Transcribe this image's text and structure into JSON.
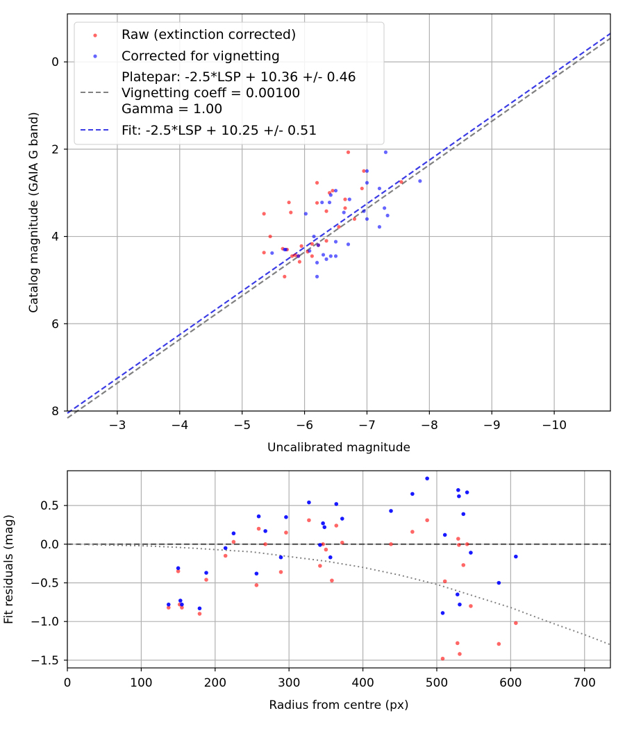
{
  "chart_data": [
    {
      "type": "scatter",
      "xlabel": "Uncalibrated magnitude",
      "ylabel": "Catalog magnitude (GAIA G band)",
      "xlim": [
        -2.2,
        -10.9
      ],
      "ylim": [
        8.0,
        -1.1
      ],
      "xticks": [
        -3,
        -4,
        -5,
        -6,
        -7,
        -8,
        -9,
        -10
      ],
      "xtick_labels": [
        "−3",
        "−4",
        "−5",
        "−6",
        "−7",
        "−8",
        "−9",
        "−10"
      ],
      "yticks": [
        0,
        2,
        4,
        6,
        8
      ],
      "ytick_labels": [
        "0",
        "2",
        "4",
        "6",
        "8"
      ],
      "grid": true,
      "legend_position": "top-left",
      "series": [
        {
          "name": "Raw (extinction corrected)",
          "kind": "scatter",
          "color": "#ff0000",
          "points": [
            [
              -6.7,
              2.07
            ],
            [
              -6.95,
              2.5
            ],
            [
              -7.55,
              2.75
            ],
            [
              -6.2,
              2.77
            ],
            [
              -6.4,
              3.0
            ],
            [
              -6.45,
              2.95
            ],
            [
              -6.65,
              3.15
            ],
            [
              -6.92,
              2.9
            ],
            [
              -5.75,
              3.22
            ],
            [
              -6.2,
              3.23
            ],
            [
              -5.35,
              3.48
            ],
            [
              -5.78,
              3.45
            ],
            [
              -6.35,
              3.42
            ],
            [
              -6.65,
              3.35
            ],
            [
              -6.8,
              3.6
            ],
            [
              -6.55,
              3.78
            ],
            [
              -5.45,
              4.0
            ],
            [
              -6.35,
              4.1
            ],
            [
              -6.22,
              4.2
            ],
            [
              -6.12,
              4.17
            ],
            [
              -5.65,
              4.28
            ],
            [
              -5.72,
              4.3
            ],
            [
              -5.95,
              4.22
            ],
            [
              -6.05,
              4.35
            ],
            [
              -5.85,
              4.43
            ],
            [
              -5.8,
              4.45
            ],
            [
              -5.9,
              4.45
            ],
            [
              -6.12,
              4.45
            ],
            [
              -5.35,
              4.37
            ],
            [
              -5.92,
              4.58
            ],
            [
              -5.68,
              4.92
            ]
          ]
        },
        {
          "name": "Corrected for vignetting",
          "kind": "scatter",
          "color": "#0000ff",
          "points": [
            [
              -7.3,
              2.07
            ],
            [
              -7.0,
              2.5
            ],
            [
              -7.0,
              2.77
            ],
            [
              -7.85,
              2.73
            ],
            [
              -6.5,
              2.95
            ],
            [
              -7.2,
              2.9
            ],
            [
              -6.42,
              3.05
            ],
            [
              -6.28,
              3.22
            ],
            [
              -6.4,
              3.22
            ],
            [
              -6.72,
              3.15
            ],
            [
              -6.95,
              3.42
            ],
            [
              -7.28,
              3.35
            ],
            [
              -6.02,
              3.48
            ],
            [
              -6.63,
              3.45
            ],
            [
              -7.0,
              3.6
            ],
            [
              -7.33,
              3.52
            ],
            [
              -7.2,
              3.78
            ],
            [
              -6.15,
              4.0
            ],
            [
              -6.5,
              4.12
            ],
            [
              -6.7,
              4.18
            ],
            [
              -6.22,
              4.2
            ],
            [
              -5.68,
              4.3
            ],
            [
              -5.7,
              4.3
            ],
            [
              -6.08,
              4.33
            ],
            [
              -5.48,
              4.38
            ],
            [
              -5.9,
              4.45
            ],
            [
              -6.3,
              4.42
            ],
            [
              -6.5,
              4.45
            ],
            [
              -6.2,
              4.6
            ],
            [
              -6.35,
              4.52
            ],
            [
              -6.2,
              4.92
            ],
            [
              -6.42,
              4.45
            ]
          ]
        },
        {
          "name": "Platepar: -2.5*LSP + 10.36 +/- 0.46\nVignetting coeff = 0.00100\nGamma = 1.00",
          "kind": "line",
          "style": "dashed",
          "color": "#808080",
          "slope": -2.5,
          "intercept": 10.36
        },
        {
          "name": "Fit: -2.5*LSP + 10.25 +/- 0.51",
          "kind": "line",
          "style": "dashed",
          "color": "#3b3be6",
          "slope": -2.5,
          "intercept": 10.25
        }
      ]
    },
    {
      "type": "scatter",
      "xlabel": "Radius from centre (px)",
      "ylabel": "Fit residuals (mag)",
      "xlim": [
        0,
        735
      ],
      "ylim": [
        -1.6,
        0.95
      ],
      "xticks": [
        0,
        100,
        200,
        300,
        400,
        500,
        600,
        700
      ],
      "xtick_labels": [
        "0",
        "100",
        "200",
        "300",
        "400",
        "500",
        "600",
        "700"
      ],
      "yticks": [
        0.5,
        0.0,
        -0.5,
        -1.0,
        -1.5
      ],
      "ytick_labels": [
        "0.5",
        "0.0",
        "−0.5",
        "−1.0",
        "−1.5"
      ],
      "grid": true,
      "series": [
        {
          "name": "Raw residuals",
          "kind": "scatter",
          "color": "#ff0000",
          "points": [
            [
              137,
              -0.82
            ],
            [
              150,
              -0.35
            ],
            [
              152,
              -0.78
            ],
            [
              155,
              -0.82
            ],
            [
              179,
              -0.9
            ],
            [
              188,
              -0.46
            ],
            [
              214,
              -0.15
            ],
            [
              225,
              0.03
            ],
            [
              256,
              -0.53
            ],
            [
              259,
              0.2
            ],
            [
              268,
              0.0
            ],
            [
              289,
              -0.36
            ],
            [
              296,
              0.15
            ],
            [
              327,
              0.31
            ],
            [
              342,
              -0.28
            ],
            [
              346,
              0.0
            ],
            [
              350,
              -0.07
            ],
            [
              358,
              -0.47
            ],
            [
              364,
              0.24
            ],
            [
              372,
              0.02
            ],
            [
              438,
              0.0
            ],
            [
              467,
              0.16
            ],
            [
              487,
              0.31
            ],
            [
              508,
              -1.48
            ],
            [
              511,
              -0.48
            ],
            [
              528,
              -1.28
            ],
            [
              529,
              0.07
            ],
            [
              530,
              -0.01
            ],
            [
              531,
              -1.42
            ],
            [
              536,
              -0.27
            ],
            [
              541,
              0.0
            ],
            [
              546,
              -0.8
            ],
            [
              584,
              -1.29
            ],
            [
              607,
              -1.02
            ]
          ]
        },
        {
          "name": "Corrected residuals",
          "kind": "scatter",
          "color": "#0000ff",
          "points": [
            [
              137,
              -0.78
            ],
            [
              150,
              -0.31
            ],
            [
              153,
              -0.73
            ],
            [
              155,
              -0.78
            ],
            [
              179,
              -0.83
            ],
            [
              188,
              -0.37
            ],
            [
              214,
              -0.05
            ],
            [
              225,
              0.14
            ],
            [
              256,
              -0.38
            ],
            [
              259,
              0.36
            ],
            [
              268,
              0.17
            ],
            [
              289,
              -0.17
            ],
            [
              296,
              0.35
            ],
            [
              327,
              0.54
            ],
            [
              342,
              -0.01
            ],
            [
              346,
              0.27
            ],
            [
              348,
              0.22
            ],
            [
              356,
              -0.17
            ],
            [
              364,
              0.52
            ],
            [
              372,
              0.33
            ],
            [
              438,
              0.43
            ],
            [
              467,
              0.65
            ],
            [
              487,
              0.85
            ],
            [
              508,
              -0.89
            ],
            [
              511,
              0.12
            ],
            [
              528,
              -0.65
            ],
            [
              529,
              0.7
            ],
            [
              530,
              0.62
            ],
            [
              531,
              -0.78
            ],
            [
              536,
              0.39
            ],
            [
              541,
              0.67
            ],
            [
              546,
              -0.11
            ],
            [
              584,
              -0.5
            ],
            [
              607,
              -0.16
            ]
          ]
        },
        {
          "name": "zero line",
          "kind": "hline",
          "style": "dashed",
          "color": "#555555",
          "y": 0
        },
        {
          "name": "vignetting curve",
          "kind": "curve",
          "style": "dotted",
          "color": "#808080",
          "points": [
            [
              0,
              0.0
            ],
            [
              100,
              -0.02
            ],
            [
              150,
              -0.04
            ],
            [
              200,
              -0.07
            ],
            [
              250,
              -0.1
            ],
            [
              300,
              -0.16
            ],
            [
              350,
              -0.22
            ],
            [
              400,
              -0.3
            ],
            [
              450,
              -0.4
            ],
            [
              500,
              -0.52
            ],
            [
              550,
              -0.67
            ],
            [
              600,
              -0.82
            ],
            [
              650,
              -1.0
            ],
            [
              700,
              -1.17
            ],
            [
              735,
              -1.3
            ]
          ]
        }
      ]
    }
  ]
}
